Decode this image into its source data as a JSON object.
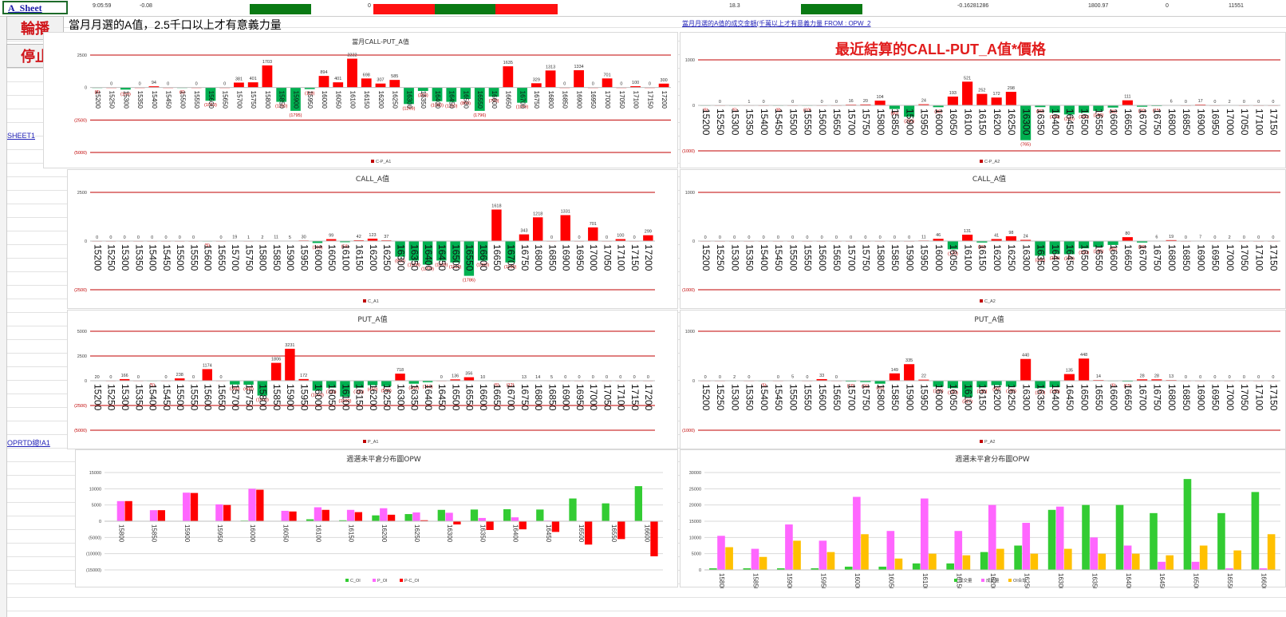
{
  "toolbar": {
    "sheet_link": "A_Sheet",
    "time": "9:05:59",
    "val1": "-0.08",
    "val2": "0",
    "val3": "18.3",
    "val4": "-0.16281286",
    "val5": "1800.97",
    "val6": "0",
    "val7": "11551"
  },
  "buttons": {
    "rotate": "輪播",
    "stop": "停止"
  },
  "note": "當月月選的A值，2.5千口以上才有意義力量",
  "link_note": "當月月選的A值的成交金額(千萬以上才有意義力量    FROM : OPW_2",
  "side_links": {
    "sheet1": "SHEET1",
    "opw": "OPRTD總!A1"
  },
  "big_title": "最近結算的CALL-PUT_A值*價格",
  "colors": {
    "pos": "#ff0000",
    "neg": "#00b050",
    "line": "#c00000",
    "call": "#33cc33",
    "put": "#ff66ff",
    "total": "#ffc000"
  },
  "chart_data": [
    {
      "id": "cp1",
      "type": "bar",
      "title": "當月CALL-PUT_A值",
      "legend": "C-P_A1",
      "ylim": [
        -5000,
        2500
      ],
      "yticks": [
        2500,
        0,
        -2500,
        -5000
      ],
      "categories": [
        "15200",
        "15250",
        "15300",
        "15350",
        "15400",
        "15450",
        "15500",
        "15550",
        "15600",
        "15650",
        "15700",
        "15750",
        "15800",
        "15850",
        "15900",
        "15950",
        "16000",
        "16050",
        "16100",
        "16150",
        "16200",
        "16250",
        "16300",
        "16350",
        "16400",
        "16450",
        "16500",
        "16550",
        "16600",
        "16650",
        "16700",
        "16750",
        "16800",
        "16850",
        "16900",
        "16950",
        "17000",
        "17050",
        "17100",
        "17150",
        "17200"
      ],
      "values": [
        -8,
        0,
        -159,
        0,
        94,
        0,
        -6,
        0,
        -1019,
        0,
        381,
        401,
        1703,
        -1100,
        -1795,
        -119,
        894,
        401,
        2222,
        698,
        307,
        585,
        -1269,
        -263,
        -1050,
        -1100,
        -880,
        -1796,
        -700,
        1635,
        -1169,
        329,
        1313,
        0,
        1334,
        0,
        701,
        0,
        100,
        0,
        300
      ]
    },
    {
      "id": "cp2",
      "type": "bar",
      "title": "",
      "legend": "C-P_A2",
      "ylim": [
        -1000,
        1000
      ],
      "yticks": [
        1000,
        0,
        -1000
      ],
      "categories": [
        "15200",
        "15250",
        "15300",
        "15350",
        "15400",
        "15450",
        "15500",
        "15550",
        "15600",
        "15650",
        "15700",
        "15750",
        "15800",
        "15850",
        "15900",
        "15950",
        "16000",
        "16050",
        "16100",
        "16150",
        "16200",
        "16250",
        "16300",
        "16350",
        "16400",
        "16450",
        "16500",
        "16550",
        "16600",
        "16650",
        "16700",
        "16750",
        "16800",
        "16850",
        "16900",
        "16950",
        "17000",
        "17050",
        "17100",
        "17150"
      ],
      "values": [
        -6,
        0,
        -5,
        1,
        0,
        -8,
        0,
        -10,
        0,
        0,
        16,
        20,
        104,
        -80,
        -250,
        24,
        -40,
        193,
        521,
        252,
        172,
        298,
        -765,
        -39,
        -159,
        -200,
        -161,
        -120,
        -48,
        111,
        -30,
        -15,
        6,
        0,
        17,
        0,
        2,
        0,
        0,
        0
      ]
    },
    {
      "id": "call1",
      "type": "bar",
      "title": "CALL_A值",
      "legend": "C_A1",
      "ylim": [
        -2500,
        2500
      ],
      "yticks": [
        2500,
        0,
        -2500
      ],
      "categories": [
        "15200",
        "15250",
        "15300",
        "15350",
        "15400",
        "15450",
        "15500",
        "15550",
        "15600",
        "15650",
        "15700",
        "15750",
        "15800",
        "15850",
        "15900",
        "15950",
        "16000",
        "16050",
        "16100",
        "16150",
        "16200",
        "16250",
        "16300",
        "16350",
        "16400",
        "16450",
        "16500",
        "16550",
        "16600",
        "16650",
        "16700",
        "16750",
        "16800",
        "16850",
        "16900",
        "16950",
        "17000",
        "17050",
        "17100",
        "17150",
        "17200"
      ],
      "values": [
        0,
        0,
        0,
        0,
        0,
        0,
        0,
        0,
        -5,
        0,
        19,
        1,
        2,
        11,
        5,
        30,
        -100,
        99,
        -58,
        42,
        123,
        37,
        -800,
        -1000,
        -1209,
        -1000,
        -1100,
        -1786,
        -1000,
        1618,
        -1100,
        343,
        1218,
        0,
        1331,
        0,
        701,
        0,
        100,
        0,
        299
      ]
    },
    {
      "id": "call2",
      "type": "bar",
      "title": "CALL_A值",
      "legend": "C_A2",
      "ylim": [
        -1000,
        1000
      ],
      "yticks": [
        1000,
        0,
        -1000
      ],
      "categories": [
        "15200",
        "15250",
        "15300",
        "15350",
        "15400",
        "15450",
        "15500",
        "15550",
        "15600",
        "15650",
        "15700",
        "15750",
        "15800",
        "15850",
        "15900",
        "15950",
        "16000",
        "16050",
        "16100",
        "16150",
        "16200",
        "16250",
        "16300",
        "16350",
        "16400",
        "16450",
        "16500",
        "16550",
        "16600",
        "16650",
        "16700",
        "16750",
        "16800",
        "16850",
        "16900",
        "16950",
        "17000",
        "17050",
        "17100",
        "17150"
      ],
      "values": [
        0,
        0,
        0,
        0,
        0,
        0,
        0,
        0,
        0,
        0,
        0,
        0,
        0,
        0,
        0,
        11,
        46,
        -170,
        131,
        -30,
        41,
        98,
        24,
        -300,
        -266,
        -270,
        -150,
        -120,
        -80,
        80,
        -30,
        6,
        19,
        0,
        7,
        0,
        2,
        0,
        0,
        0
      ]
    },
    {
      "id": "put1",
      "type": "bar",
      "title": "PUT_A值",
      "legend": "P_A1",
      "ylim": [
        -5000,
        5000
      ],
      "yticks": [
        5000,
        2500,
        0,
        -2500,
        -5000
      ],
      "categories": [
        "15200",
        "15250",
        "15300",
        "15350",
        "15400",
        "15450",
        "15500",
        "15550",
        "15600",
        "15650",
        "15700",
        "15750",
        "15800",
        "15850",
        "15900",
        "15950",
        "16000",
        "16050",
        "16100",
        "16150",
        "16200",
        "16250",
        "16300",
        "16350",
        "16400",
        "16450",
        "16500",
        "16550",
        "16600",
        "16650",
        "16700",
        "16750",
        "16800",
        "16850",
        "16900",
        "16950",
        "17000",
        "17050",
        "17100",
        "17150",
        "17200"
      ],
      "values": [
        20,
        0,
        166,
        0,
        -5,
        0,
        238,
        0,
        1174,
        0,
        -380,
        -400,
        -1500,
        1806,
        3231,
        172,
        -1000,
        -700,
        -1600,
        -700,
        -450,
        -550,
        718,
        -300,
        -150,
        0,
        136,
        356,
        10,
        -6,
        -12,
        13,
        14,
        5,
        0,
        0,
        0,
        0,
        0,
        0,
        0
      ]
    },
    {
      "id": "put2",
      "type": "bar",
      "title": "PUT_A值",
      "legend": "P_A2",
      "ylim": [
        -1000,
        1000
      ],
      "yticks": [
        1000,
        0,
        -1000
      ],
      "categories": [
        "15200",
        "15250",
        "15300",
        "15350",
        "15400",
        "15450",
        "15500",
        "15550",
        "15600",
        "15650",
        "15700",
        "15750",
        "15800",
        "15850",
        "15900",
        "15950",
        "16000",
        "16050",
        "16100",
        "16150",
        "16200",
        "16250",
        "16300",
        "16350",
        "16400",
        "16450",
        "16500",
        "16550",
        "16600",
        "16650",
        "16700",
        "16750",
        "16800",
        "16850",
        "16900",
        "16950",
        "17000",
        "17050",
        "17100",
        "17150"
      ],
      "values": [
        0,
        0,
        2,
        0,
        -5,
        0,
        5,
        0,
        33,
        0,
        -16,
        -26,
        -60,
        149,
        335,
        22,
        -120,
        -150,
        -327,
        -130,
        -90,
        -120,
        440,
        -150,
        -130,
        135,
        448,
        14,
        -6,
        -15,
        28,
        28,
        13,
        0,
        0,
        0,
        0,
        0,
        0,
        0
      ]
    },
    {
      "id": "oi1",
      "type": "bar",
      "title": "週選未平倉分布圖OPW",
      "legend_entries": [
        "C_OI",
        "P_OI",
        "P-C_OI"
      ],
      "ylim": [
        -15000,
        15000
      ],
      "yticks": [
        15000,
        10000,
        5000,
        0,
        -5000,
        -10000,
        -15000
      ],
      "categories": [
        "15800",
        "15850",
        "15900",
        "15950",
        "16000",
        "16050",
        "16100",
        "16150",
        "16200",
        "16250",
        "16300",
        "16350",
        "16400",
        "16450",
        "16500",
        "16550",
        "16600"
      ],
      "series": [
        {
          "name": "C_OI",
          "values": [
            0,
            0,
            0,
            0,
            200,
            0,
            600,
            300,
            1800,
            2200,
            3500,
            3600,
            3700,
            3600,
            7000,
            5500,
            10800
          ]
        },
        {
          "name": "P_OI",
          "values": [
            6200,
            3400,
            8800,
            5200,
            10000,
            3200,
            4300,
            3500,
            4000,
            2700,
            2600,
            1000,
            1200,
            200,
            0,
            0,
            0
          ]
        },
        {
          "name": "P-C_OI",
          "values": [
            6200,
            3400,
            8700,
            5000,
            9700,
            3000,
            3500,
            2800,
            2000,
            300,
            -1000,
            -2700,
            -2500,
            -3300,
            -7200,
            -5500,
            -10800
          ]
        }
      ]
    },
    {
      "id": "oi2",
      "type": "bar",
      "title": "週選未平倉分布圖OPW",
      "legend_entries": [
        "成交量",
        "成交量",
        "OI合計"
      ],
      "ylim": [
        0,
        30000
      ],
      "yticks": [
        30000,
        25000,
        20000,
        15000,
        10000,
        5000,
        0
      ],
      "categories": [
        "15800",
        "15850",
        "15900",
        "15950",
        "16000",
        "16050",
        "16100",
        "16150",
        "16200",
        "16250",
        "16300",
        "16350",
        "16400",
        "16450",
        "16500",
        "16550",
        "16600"
      ],
      "series": [
        {
          "name": "成交量",
          "values": [
            500,
            500,
            500,
            500,
            1000,
            1000,
            2000,
            2000,
            5500,
            7500,
            18500,
            20000,
            20000,
            17500,
            28000,
            17500,
            24000
          ]
        },
        {
          "name": "成交量",
          "values": [
            10500,
            6500,
            14000,
            9000,
            22500,
            12000,
            22000,
            12000,
            20000,
            14500,
            19500,
            10000,
            7500,
            2500,
            2500,
            500,
            500
          ]
        },
        {
          "name": "OI合計",
          "values": [
            7000,
            4000,
            9000,
            5500,
            11000,
            3500,
            5000,
            4500,
            6500,
            5000,
            6500,
            5000,
            5000,
            4500,
            7500,
            6000,
            11000
          ]
        }
      ]
    }
  ]
}
